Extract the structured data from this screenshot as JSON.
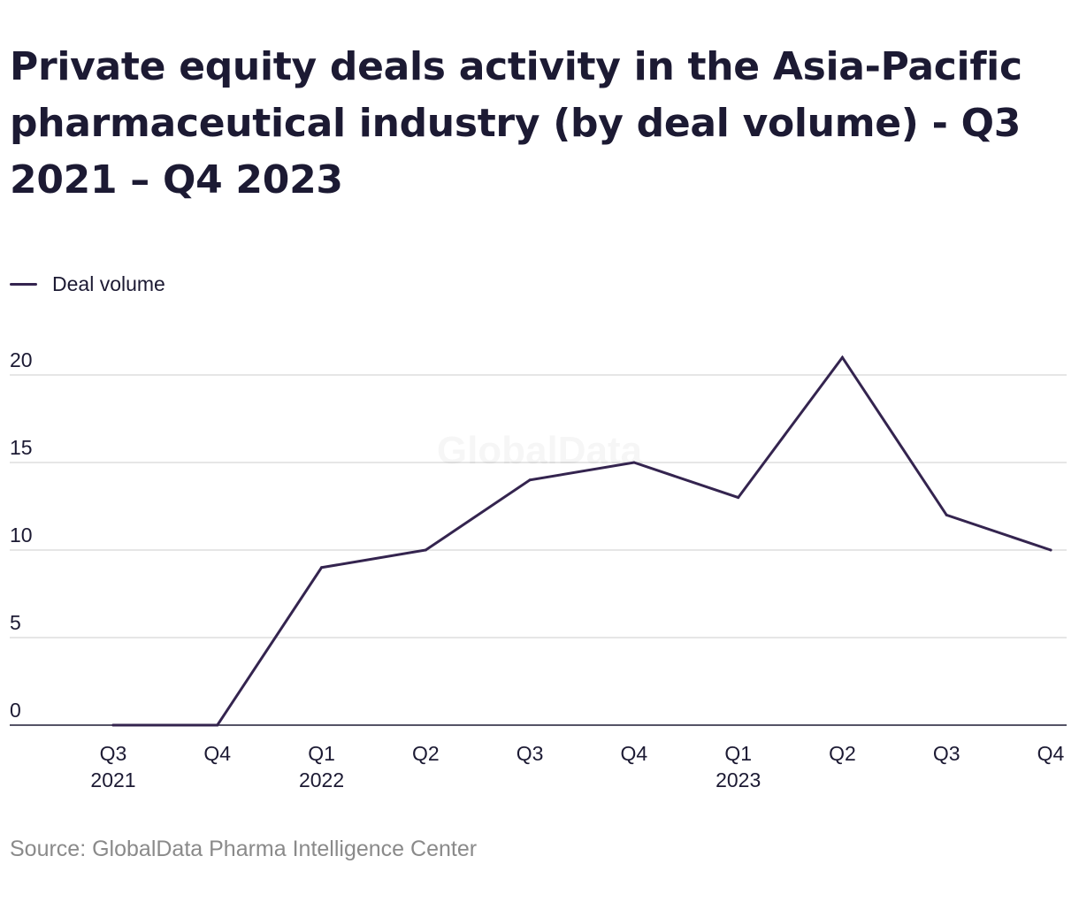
{
  "title": "Private equity deals activity in the Asia-Pacific pharmaceutical industry (by deal volume) - Q3 2021 – Q4 2023",
  "source": "Source: GlobalData Pharma Intelligence Center",
  "watermark": "GlobalData",
  "colors": {
    "line": "#34244f",
    "grid": "#d6d6d6",
    "axis": "#1c1a33",
    "text": "#1c1a33",
    "muted": "#8a8a8a"
  },
  "chart_data": {
    "type": "line",
    "title": "Private equity deals activity in the Asia-Pacific pharmaceutical industry (by deal volume) - Q3 2021 – Q4 2023",
    "categories": [
      [
        "Q3",
        "2021"
      ],
      [
        "Q4",
        ""
      ],
      [
        "Q1",
        "2022"
      ],
      [
        "Q2",
        ""
      ],
      [
        "Q3",
        ""
      ],
      [
        "Q4",
        ""
      ],
      [
        "Q1",
        "2023"
      ],
      [
        "Q2",
        ""
      ],
      [
        "Q3",
        ""
      ],
      [
        "Q4",
        ""
      ]
    ],
    "series": [
      {
        "name": "Deal volume",
        "values": [
          0,
          0,
          9,
          10,
          14,
          15,
          13,
          21,
          12,
          10
        ]
      }
    ],
    "ylim": [
      0,
      20
    ],
    "yticks": [
      0,
      5,
      10,
      15,
      20
    ],
    "xlabel": "",
    "ylabel": "",
    "grid": true,
    "legend": "top-left"
  }
}
